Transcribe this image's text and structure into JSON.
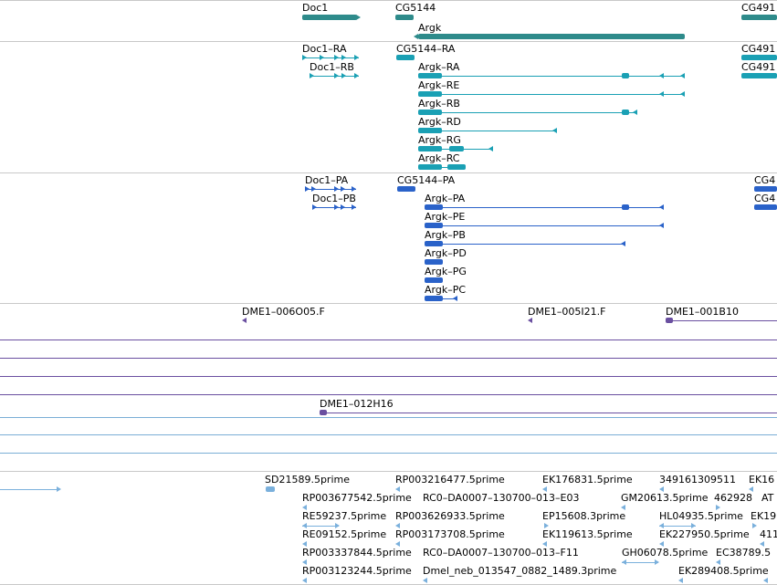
{
  "colors": {
    "gene": "#2e8b8b",
    "transcript": "#1aa0b4",
    "protein": "#2a62c9",
    "clone_purple": "#6a4fa0",
    "clone_blue": "#7aaed6",
    "est": "#7ab0dc",
    "separator": "#c8c8c8"
  },
  "genes": {
    "doc1": "Doc1",
    "cg5144": "CG5144",
    "cg491": "CG491",
    "argk": "Argk"
  },
  "transcripts": {
    "doc1_ra": "Doc1–RA",
    "doc1_rb": "Doc1–RB",
    "cg5144_ra": "CG5144–RA",
    "cg491_a": "CG491",
    "cg491_b": "CG491",
    "argk_ra": "Argk–RA",
    "argk_re": "Argk–RE",
    "argk_rb": "Argk–RB",
    "argk_rd": "Argk–RD",
    "argk_rg": "Argk–RG",
    "argk_rc": "Argk–RC"
  },
  "proteins": {
    "doc1_pa": "Doc1–PA",
    "doc1_pb": "Doc1–PB",
    "cg5144_pa": "CG5144–PA",
    "cg4_a": "CG4",
    "cg4_b": "CG4",
    "argk_pa": "Argk–PA",
    "argk_pe": "Argk–PE",
    "argk_pb": "Argk–PB",
    "argk_pd": "Argk–PD",
    "argk_pg": "Argk–PG",
    "argk_pc": "Argk–PC"
  },
  "clones": {
    "c1": "DME1–006O05.F",
    "c2": "DME1–005I21.F",
    "c3": "DME1–001B10",
    "c4": "DME1–012H16"
  },
  "ests": {
    "e1": "SD21589.5prime",
    "e2": "RP003216477.5prime",
    "e3": "EK176831.5prime",
    "e4": "349161309511",
    "e5": "EK16",
    "e6": "RP003677542.5prime",
    "e7": "RC0–DA0007–130700–013–E03",
    "e8": "GM20613.5prime",
    "e9": "462928",
    "e10": "AT",
    "e11": "RE59237.5prime",
    "e12": "RP003626933.5prime",
    "e13": "EP15608.3prime",
    "e14": "HL04935.5prime",
    "e15": "EK19",
    "e16": "RE09152.5prime",
    "e17": "RP003173708.5prime",
    "e18": "EK119613.5prime",
    "e19": "EK227950.5prime",
    "e20": "411",
    "e21": "RP003337844.5prime",
    "e22": "RC0–DA0007–130700–013–F11",
    "e23": "GH06078.5prime",
    "e24": "EC38789.5",
    "e25": "RP003123244.5prime",
    "e26": "Dmel_neb_013547_0882_1489.3prime",
    "e27": "EK289408.5prime"
  }
}
